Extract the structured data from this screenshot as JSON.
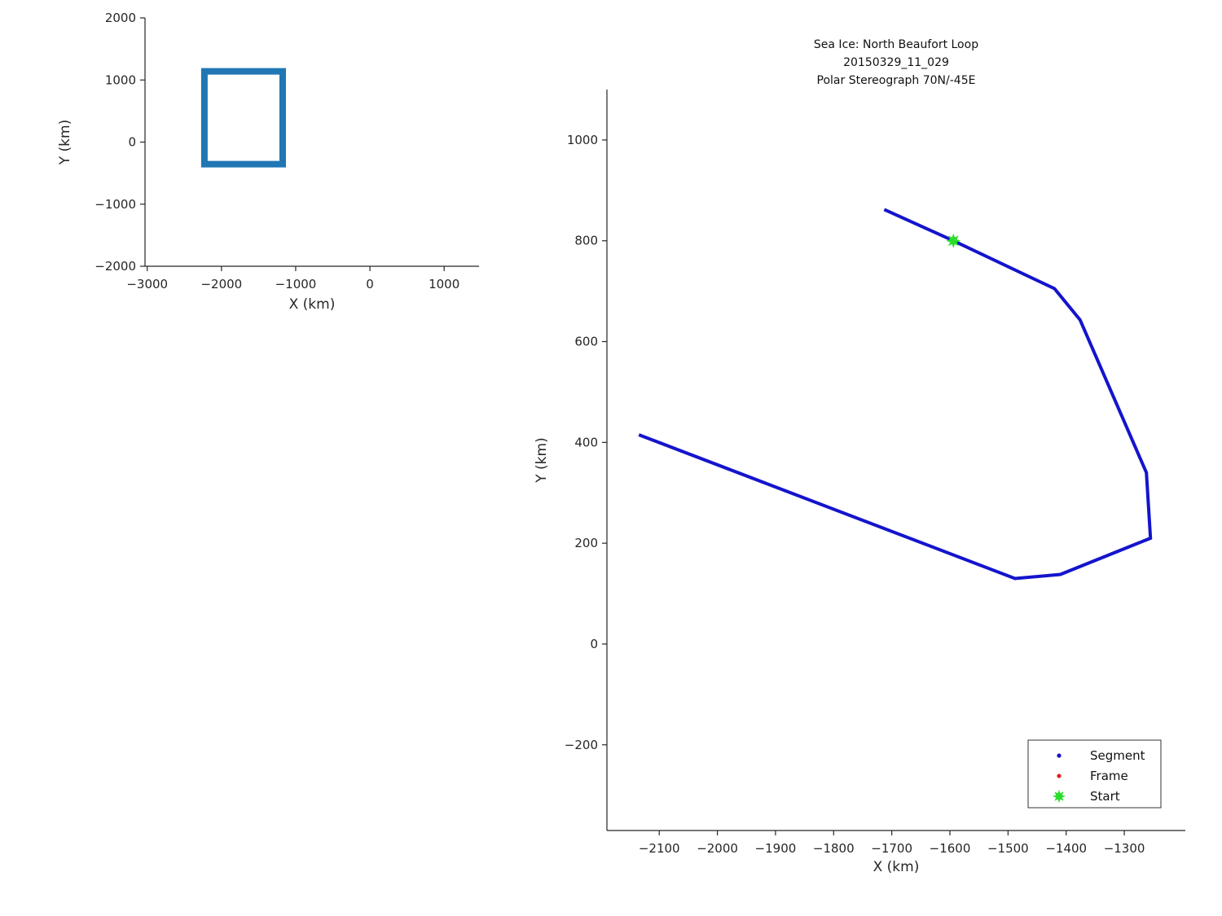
{
  "colors": {
    "overview_line": "#2077b4",
    "segment_line": "#1414cc",
    "frame_marker": "#dd2222",
    "start_marker": "#2bdd2b",
    "axis": "#262626"
  },
  "chart_data": [
    {
      "type": "line",
      "id": "overview",
      "title": [],
      "xlabel": "X (km)",
      "ylabel": "Y (km)",
      "xlim": [
        -3030,
        1470
      ],
      "ylim": [
        -2000,
        2000
      ],
      "xticks": [
        -3000,
        -2000,
        -1000,
        0,
        1000
      ],
      "yticks": [
        -2000,
        -1000,
        0,
        1000,
        2000
      ],
      "grid": false,
      "legend_position": "none",
      "series": [
        {
          "name": "track-extent-outline",
          "color": "#2077b4",
          "width": 8,
          "x": [
            -2270,
            -2230,
            -2230,
            -1175,
            -1175,
            -2230,
            -2230
          ],
          "y": [
            -310,
            -310,
            1140,
            1140,
            -355,
            -355,
            -300
          ]
        }
      ],
      "markers": []
    },
    {
      "type": "line",
      "id": "trajectory",
      "title": [
        "Sea Ice: North Beaufort Loop",
        "20150329_11_029",
        "Polar Stereograph 70N/-45E"
      ],
      "xlabel": "X (km)",
      "ylabel": "Y (km)",
      "xlim": [
        -2190,
        -1195
      ],
      "ylim": [
        -370,
        1100
      ],
      "xticks": [
        -2100,
        -2000,
        -1900,
        -1800,
        -1700,
        -1600,
        -1500,
        -1400,
        -1300
      ],
      "yticks": [
        -200,
        0,
        200,
        400,
        600,
        800,
        1000
      ],
      "grid": false,
      "legend_position": "bottom-right",
      "series": [
        {
          "name": "Segment",
          "color": "#1414cc",
          "width": 4,
          "x": [
            -1713,
            -1594,
            -1420,
            -1376,
            -1262,
            -1255,
            -1410,
            -1488,
            -2135
          ],
          "y": [
            862,
            800,
            705,
            643,
            340,
            210,
            138,
            130,
            415
          ]
        }
      ],
      "markers": [
        {
          "name": "Start",
          "shape": "star",
          "x": -1594,
          "y": 800,
          "color": "#2bdd2b"
        }
      ],
      "legend": {
        "entries": [
          {
            "label": "Segment",
            "marker": "dot",
            "color": "#1414cc"
          },
          {
            "label": "Frame",
            "marker": "dot",
            "color": "#dd2222"
          },
          {
            "label": "Start",
            "marker": "star",
            "color": "#2bdd2b"
          }
        ]
      }
    }
  ]
}
